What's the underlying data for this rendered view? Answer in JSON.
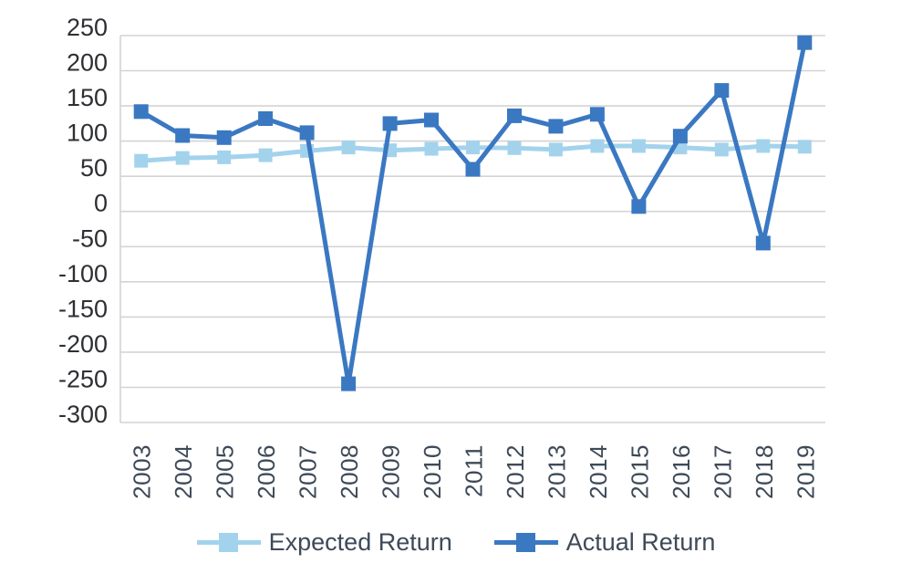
{
  "chart_data": {
    "type": "line",
    "title": "",
    "xlabel": "",
    "ylabel": "",
    "categories": [
      "2003",
      "2004",
      "2005",
      "2006",
      "2007",
      "2008",
      "2009",
      "2010",
      "2011",
      "2012",
      "2013",
      "2014",
      "2015",
      "2016",
      "2017",
      "2018",
      "2019"
    ],
    "series": [
      {
        "name": "Expected Return",
        "color": "#a3d3ec",
        "marker": "square",
        "values": [
          72,
          76,
          77,
          80,
          86,
          91,
          87,
          89,
          91,
          90,
          88,
          93,
          93,
          91,
          88,
          93,
          92
        ]
      },
      {
        "name": "Actual Return",
        "color": "#3a78c2",
        "marker": "square",
        "values": [
          142,
          108,
          105,
          132,
          112,
          -245,
          125,
          130,
          60,
          136,
          121,
          138,
          7,
          107,
          172,
          -45,
          240
        ]
      }
    ],
    "ylim": [
      -300,
      250
    ],
    "yticks": [
      250,
      200,
      150,
      100,
      50,
      0,
      -50,
      -100,
      -150,
      -200,
      -250,
      -300
    ],
    "grid": "horizontal",
    "grid_color": "#d4d4d4",
    "axis_text_color": "#2d2f33",
    "category_text_color": "#3e4a58",
    "legend_position": "bottom"
  }
}
